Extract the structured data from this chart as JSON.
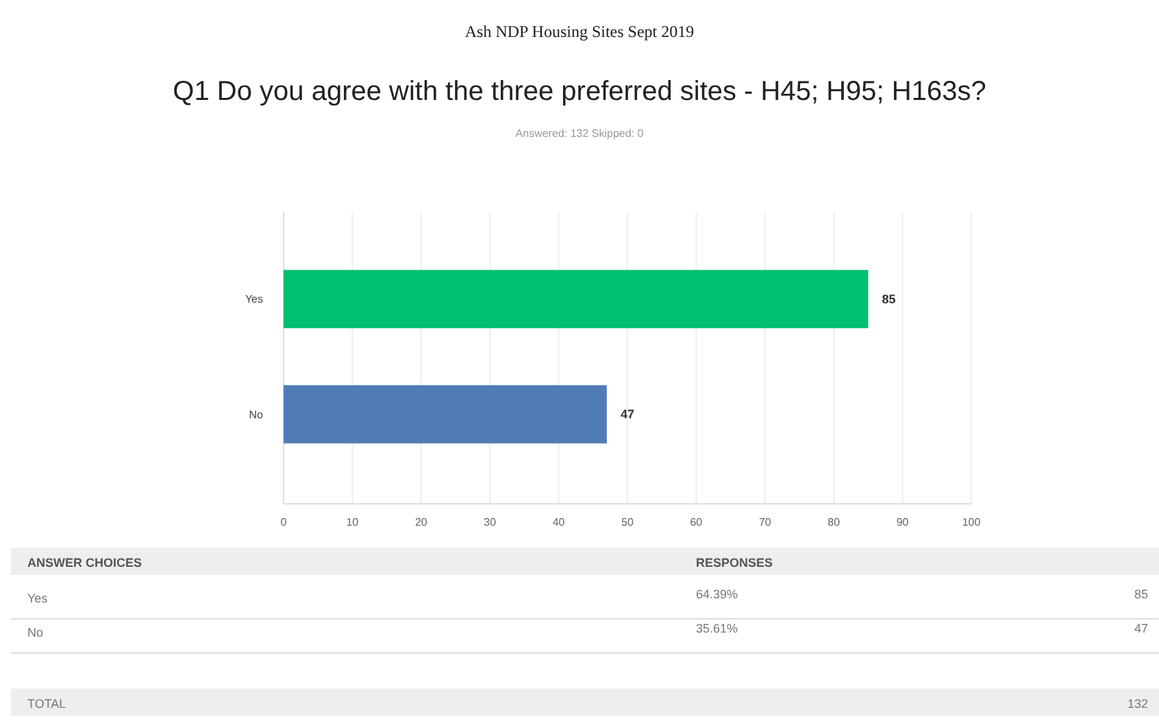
{
  "chart_data": {
    "type": "bar",
    "orientation": "horizontal",
    "title": "Q1 Do you agree with the three preferred sites - H45; H95; H163s?",
    "subtitle": "Answered: 132    Skipped: 0",
    "categories": [
      "Yes",
      "No"
    ],
    "values": [
      85,
      47
    ],
    "colors": [
      "#00bf6f",
      "#507cb6"
    ],
    "xlim": [
      0,
      100
    ],
    "xticks": [
      0,
      10,
      20,
      30,
      40,
      50,
      60,
      70,
      80,
      90,
      100
    ],
    "grid": "x",
    "data_labels": true,
    "annotations": [
      "Ash NDP Housing Sites Sept 2019",
      "ANSWER CHOICES",
      "RESPONSES",
      "64.39%",
      "35.61%",
      "85",
      "47",
      "TOTAL",
      "132"
    ]
  }
}
